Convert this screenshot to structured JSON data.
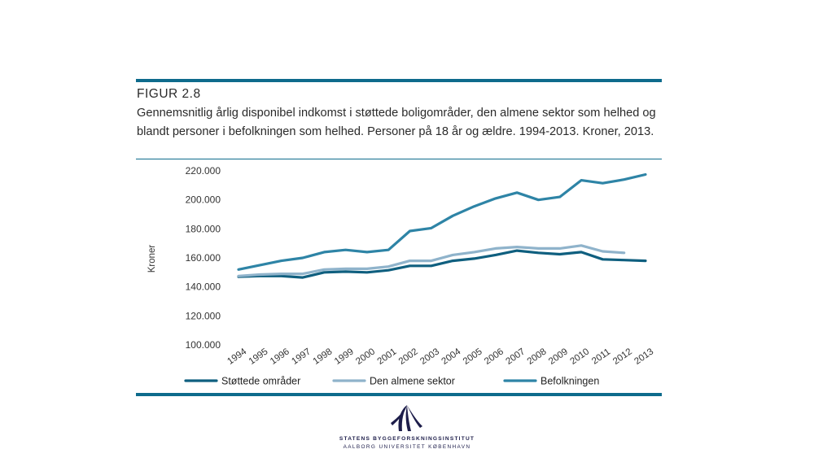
{
  "figure": {
    "label": "FIGUR 2.8",
    "caption": "Gennemsnitlig årlig disponibel indkomst i støttede boligområder, den almene sektor som helhed og blandt personer i befolkningen som helhed. Personer på 18 år og ældre. 1994-2013. Kroner, 2013."
  },
  "institution": {
    "name": "STATENS BYGGEFORSKNINGSINSTITUT",
    "sub": "AALBORG UNIVERSITET KØBENHAVN"
  },
  "chart_data": {
    "type": "line",
    "ylabel": "Kroner",
    "xlabel": "",
    "ylim": [
      100000,
      220000
    ],
    "yticks": [
      100000,
      120000,
      140000,
      160000,
      180000,
      200000,
      220000
    ],
    "ytick_labels": [
      "100.000",
      "120.000",
      "140.000",
      "160.000",
      "180.000",
      "200.000",
      "220.000"
    ],
    "grid": false,
    "legend_position": "bottom",
    "x": [
      "1994",
      "1995",
      "1996",
      "1997",
      "1998",
      "1999",
      "2000",
      "2001",
      "2002",
      "2003",
      "2004",
      "2005",
      "2006",
      "2007",
      "2008",
      "2009",
      "2010",
      "2011",
      "2012",
      "2013"
    ],
    "series": [
      {
        "name": "Støttede områder",
        "color": "#0f5f7f",
        "values": [
          147000,
          147500,
          147500,
          146500,
          150000,
          150500,
          150000,
          151500,
          154500,
          154500,
          158000,
          159500,
          162000,
          165000,
          163500,
          162500,
          164000,
          159000,
          158500,
          158000
        ]
      },
      {
        "name": "Den almene sektor",
        "color": "#8fb3cb",
        "values": [
          147500,
          148500,
          149000,
          149000,
          152000,
          152500,
          152500,
          154000,
          158000,
          158000,
          162000,
          164000,
          166500,
          167500,
          166500,
          166500,
          168500,
          164500,
          163500,
          null
        ]
      },
      {
        "name": "Befolkningen",
        "color": "#2e84a6",
        "values": [
          152000,
          155000,
          158000,
          160000,
          164000,
          165500,
          164000,
          165500,
          178500,
          180500,
          189000,
          195500,
          201000,
          205000,
          200000,
          202000,
          213500,
          211500,
          214000,
          217500
        ]
      }
    ]
  }
}
